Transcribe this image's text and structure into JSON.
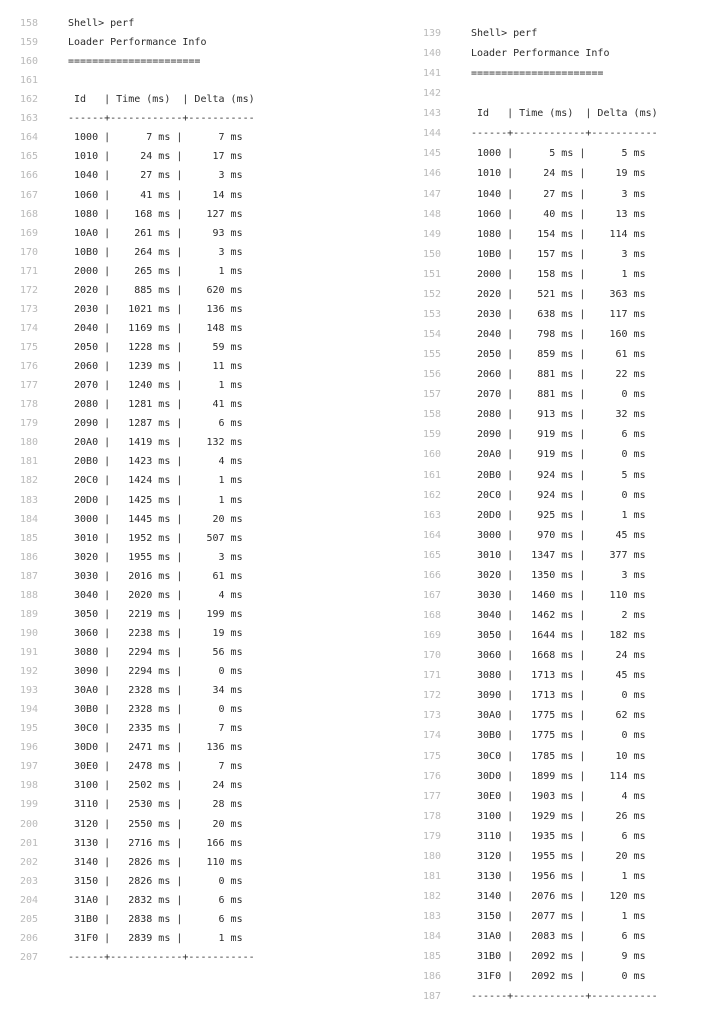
{
  "left": {
    "lines": [
      {
        "num": "158",
        "text": "Shell> perf"
      },
      {
        "num": "159",
        "text": "Loader Performance Info"
      },
      {
        "num": "160",
        "text": "======================"
      },
      {
        "num": "161",
        "text": ""
      },
      {
        "num": "162",
        "text": " Id   | Time (ms)  | Delta (ms)"
      },
      {
        "num": "163",
        "text": "------+------------+-----------"
      },
      {
        "num": "164",
        "text": " 1000 |      7 ms |      7 ms"
      },
      {
        "num": "165",
        "text": " 1010 |     24 ms |     17 ms"
      },
      {
        "num": "166",
        "text": " 1040 |     27 ms |      3 ms"
      },
      {
        "num": "167",
        "text": " 1060 |     41 ms |     14 ms"
      },
      {
        "num": "168",
        "text": " 1080 |    168 ms |    127 ms"
      },
      {
        "num": "169",
        "text": " 10A0 |    261 ms |     93 ms"
      },
      {
        "num": "170",
        "text": " 10B0 |    264 ms |      3 ms"
      },
      {
        "num": "171",
        "text": " 2000 |    265 ms |      1 ms"
      },
      {
        "num": "172",
        "text": " 2020 |    885 ms |    620 ms"
      },
      {
        "num": "173",
        "text": " 2030 |   1021 ms |    136 ms"
      },
      {
        "num": "174",
        "text": " 2040 |   1169 ms |    148 ms"
      },
      {
        "num": "175",
        "text": " 2050 |   1228 ms |     59 ms"
      },
      {
        "num": "176",
        "text": " 2060 |   1239 ms |     11 ms"
      },
      {
        "num": "177",
        "text": " 2070 |   1240 ms |      1 ms"
      },
      {
        "num": "178",
        "text": " 2080 |   1281 ms |     41 ms"
      },
      {
        "num": "179",
        "text": " 2090 |   1287 ms |      6 ms"
      },
      {
        "num": "180",
        "text": " 20A0 |   1419 ms |    132 ms"
      },
      {
        "num": "181",
        "text": " 20B0 |   1423 ms |      4 ms"
      },
      {
        "num": "182",
        "text": " 20C0 |   1424 ms |      1 ms"
      },
      {
        "num": "183",
        "text": " 20D0 |   1425 ms |      1 ms"
      },
      {
        "num": "184",
        "text": " 3000 |   1445 ms |     20 ms"
      },
      {
        "num": "185",
        "text": " 3010 |   1952 ms |    507 ms"
      },
      {
        "num": "186",
        "text": " 3020 |   1955 ms |      3 ms"
      },
      {
        "num": "187",
        "text": " 3030 |   2016 ms |     61 ms"
      },
      {
        "num": "188",
        "text": " 3040 |   2020 ms |      4 ms"
      },
      {
        "num": "189",
        "text": " 3050 |   2219 ms |    199 ms"
      },
      {
        "num": "190",
        "text": " 3060 |   2238 ms |     19 ms"
      },
      {
        "num": "191",
        "text": " 3080 |   2294 ms |     56 ms"
      },
      {
        "num": "192",
        "text": " 3090 |   2294 ms |      0 ms"
      },
      {
        "num": "193",
        "text": " 30A0 |   2328 ms |     34 ms"
      },
      {
        "num": "194",
        "text": " 30B0 |   2328 ms |      0 ms"
      },
      {
        "num": "195",
        "text": " 30C0 |   2335 ms |      7 ms"
      },
      {
        "num": "196",
        "text": " 30D0 |   2471 ms |    136 ms"
      },
      {
        "num": "197",
        "text": " 30E0 |   2478 ms |      7 ms"
      },
      {
        "num": "198",
        "text": " 3100 |   2502 ms |     24 ms"
      },
      {
        "num": "199",
        "text": " 3110 |   2530 ms |     28 ms"
      },
      {
        "num": "200",
        "text": " 3120 |   2550 ms |     20 ms"
      },
      {
        "num": "201",
        "text": " 3130 |   2716 ms |    166 ms"
      },
      {
        "num": "202",
        "text": " 3140 |   2826 ms |    110 ms"
      },
      {
        "num": "203",
        "text": " 3150 |   2826 ms |      0 ms"
      },
      {
        "num": "204",
        "text": " 31A0 |   2832 ms |      6 ms"
      },
      {
        "num": "205",
        "text": " 31B0 |   2838 ms |      6 ms"
      },
      {
        "num": "206",
        "text": " 31F0 |   2839 ms |      1 ms"
      },
      {
        "num": "207",
        "text": "------+------------+-----------"
      }
    ]
  },
  "right": {
    "lines": [
      {
        "num": "139",
        "text": "Shell> perf"
      },
      {
        "num": "140",
        "text": "Loader Performance Info"
      },
      {
        "num": "141",
        "text": "======================"
      },
      {
        "num": "142",
        "text": ""
      },
      {
        "num": "143",
        "text": " Id   | Time (ms)  | Delta (ms)"
      },
      {
        "num": "144",
        "text": "------+------------+-----------"
      },
      {
        "num": "145",
        "text": " 1000 |      5 ms |      5 ms"
      },
      {
        "num": "146",
        "text": " 1010 |     24 ms |     19 ms"
      },
      {
        "num": "147",
        "text": " 1040 |     27 ms |      3 ms"
      },
      {
        "num": "148",
        "text": " 1060 |     40 ms |     13 ms"
      },
      {
        "num": "149",
        "text": " 1080 |    154 ms |    114 ms"
      },
      {
        "num": "150",
        "text": " 10B0 |    157 ms |      3 ms"
      },
      {
        "num": "151",
        "text": " 2000 |    158 ms |      1 ms"
      },
      {
        "num": "152",
        "text": " 2020 |    521 ms |    363 ms"
      },
      {
        "num": "153",
        "text": " 2030 |    638 ms |    117 ms"
      },
      {
        "num": "154",
        "text": " 2040 |    798 ms |    160 ms"
      },
      {
        "num": "155",
        "text": " 2050 |    859 ms |     61 ms"
      },
      {
        "num": "156",
        "text": " 2060 |    881 ms |     22 ms"
      },
      {
        "num": "157",
        "text": " 2070 |    881 ms |      0 ms"
      },
      {
        "num": "158",
        "text": " 2080 |    913 ms |     32 ms"
      },
      {
        "num": "159",
        "text": " 2090 |    919 ms |      6 ms"
      },
      {
        "num": "160",
        "text": " 20A0 |    919 ms |      0 ms"
      },
      {
        "num": "161",
        "text": " 20B0 |    924 ms |      5 ms"
      },
      {
        "num": "162",
        "text": " 20C0 |    924 ms |      0 ms"
      },
      {
        "num": "163",
        "text": " 20D0 |    925 ms |      1 ms"
      },
      {
        "num": "164",
        "text": " 3000 |    970 ms |     45 ms"
      },
      {
        "num": "165",
        "text": " 3010 |   1347 ms |    377 ms"
      },
      {
        "num": "166",
        "text": " 3020 |   1350 ms |      3 ms"
      },
      {
        "num": "167",
        "text": " 3030 |   1460 ms |    110 ms"
      },
      {
        "num": "168",
        "text": " 3040 |   1462 ms |      2 ms"
      },
      {
        "num": "169",
        "text": " 3050 |   1644 ms |    182 ms"
      },
      {
        "num": "170",
        "text": " 3060 |   1668 ms |     24 ms"
      },
      {
        "num": "171",
        "text": " 3080 |   1713 ms |     45 ms"
      },
      {
        "num": "172",
        "text": " 3090 |   1713 ms |      0 ms"
      },
      {
        "num": "173",
        "text": " 30A0 |   1775 ms |     62 ms"
      },
      {
        "num": "174",
        "text": " 30B0 |   1775 ms |      0 ms"
      },
      {
        "num": "175",
        "text": " 30C0 |   1785 ms |     10 ms"
      },
      {
        "num": "176",
        "text": " 30D0 |   1899 ms |    114 ms"
      },
      {
        "num": "177",
        "text": " 30E0 |   1903 ms |      4 ms"
      },
      {
        "num": "178",
        "text": " 3100 |   1929 ms |     26 ms"
      },
      {
        "num": "179",
        "text": " 3110 |   1935 ms |      6 ms"
      },
      {
        "num": "180",
        "text": " 3120 |   1955 ms |     20 ms"
      },
      {
        "num": "181",
        "text": " 3130 |   1956 ms |      1 ms"
      },
      {
        "num": "182",
        "text": " 3140 |   2076 ms |    120 ms"
      },
      {
        "num": "183",
        "text": " 3150 |   2077 ms |      1 ms"
      },
      {
        "num": "184",
        "text": " 31A0 |   2083 ms |      6 ms"
      },
      {
        "num": "185",
        "text": " 31B0 |   2092 ms |      9 ms"
      },
      {
        "num": "186",
        "text": " 31F0 |   2092 ms |      0 ms"
      },
      {
        "num": "187",
        "text": "------+------------+-----------"
      }
    ]
  }
}
